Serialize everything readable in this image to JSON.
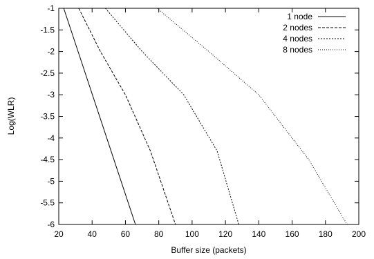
{
  "chart_data": {
    "type": "line",
    "xlabel": "Buffer size (packets)",
    "ylabel": "Log(WLR)",
    "xlim": [
      20,
      200
    ],
    "ylim": [
      -6,
      -1
    ],
    "xticks": [
      "20",
      "40",
      "60",
      "80",
      "100",
      "120",
      "140",
      "160",
      "180",
      "200"
    ],
    "yticks": [
      "-1",
      "-1.5",
      "-2",
      "-2.5",
      "-3",
      "-3.5",
      "-4",
      "-4.5",
      "-5",
      "-5.5",
      "-6"
    ],
    "grid": false,
    "legend_position": "top-right",
    "series": [
      {
        "name": "1 node",
        "style": "solid",
        "x": [
          23,
          66
        ],
        "y": [
          -1,
          -6
        ]
      },
      {
        "name": "2 nodes",
        "style": "dashed",
        "x": [
          32,
          45,
          60,
          75,
          90
        ],
        "y": [
          -1,
          -2,
          -3,
          -4.3,
          -6
        ]
      },
      {
        "name": "4 nodes",
        "style": "dashed2",
        "x": [
          48,
          70,
          95,
          115,
          128
        ],
        "y": [
          -1,
          -2,
          -3,
          -4.3,
          -6
        ]
      },
      {
        "name": "8 nodes",
        "style": "dotted",
        "x": [
          79,
          110,
          140,
          170,
          193
        ],
        "y": [
          -1,
          -2,
          -3,
          -4.5,
          -6
        ]
      }
    ]
  }
}
